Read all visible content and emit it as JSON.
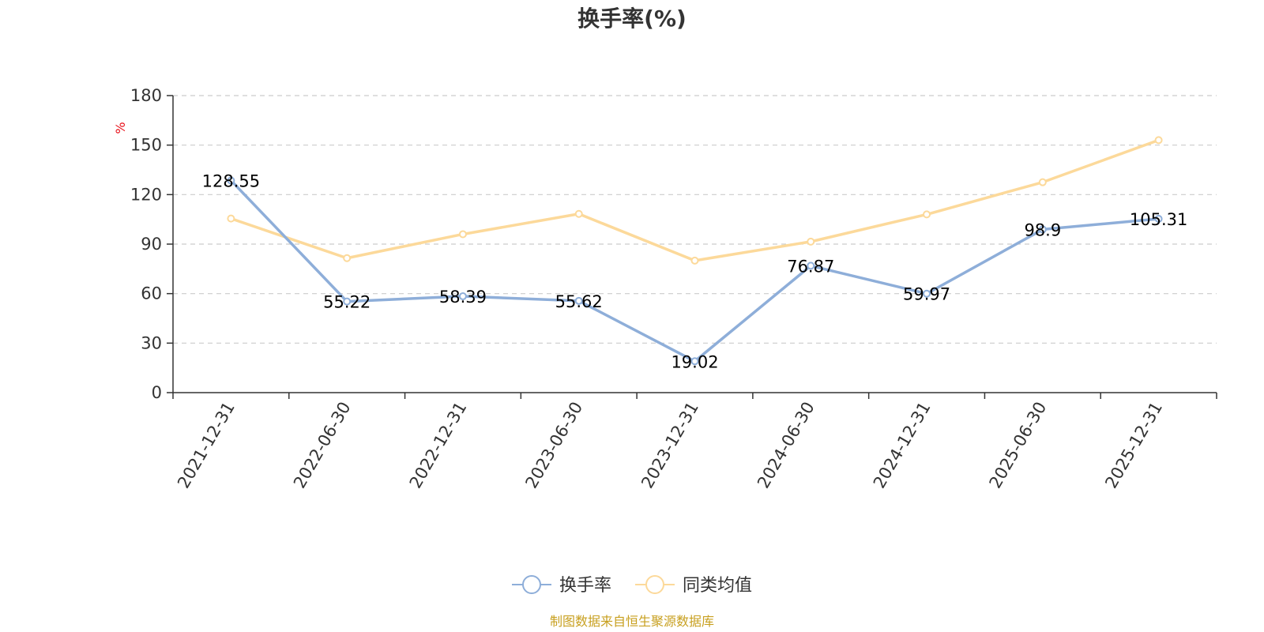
{
  "chart_data": {
    "type": "line",
    "title": "换手率(%)",
    "ylabel": "%",
    "xlabel": "",
    "ylim": [
      0,
      180
    ],
    "yticks": [
      0,
      30,
      60,
      90,
      120,
      150,
      180
    ],
    "categories": [
      "2021-12-31",
      "2022-06-30",
      "2022-12-31",
      "2023-06-30",
      "2023-12-31",
      "2024-06-30",
      "2024-12-31",
      "2025-06-30",
      "2025-12-31"
    ],
    "series": [
      {
        "name": "换手率",
        "color": "#8eaed9",
        "values": [
          128.55,
          55.22,
          58.39,
          55.62,
          19.02,
          76.87,
          59.97,
          98.9,
          105.31
        ],
        "labels": [
          "128.55",
          "55.22",
          "58.39",
          "55.62",
          "19.02",
          "76.87",
          "59.97",
          "98.9",
          "105.31"
        ]
      },
      {
        "name": "同类均值",
        "color": "#fcd99a",
        "values": [
          105.5,
          81.5,
          96,
          108.3,
          80,
          91.5,
          108,
          127.5,
          153
        ]
      }
    ],
    "grid": true,
    "legend_position": "bottom-center"
  },
  "source": "制图数据来自恒生聚源数据库"
}
